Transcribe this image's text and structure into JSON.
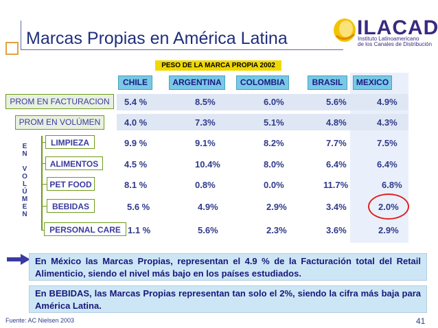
{
  "title": "Marcas Propias en América Latina",
  "logo": {
    "name": "ILACAD",
    "subtitle_line1": "Instituto Latinoamericano",
    "subtitle_line2": "de los Canales de Distribución"
  },
  "banner": "PESO DE LA MARCA PROPIA 2002",
  "countries": [
    "CHILE",
    "ARGENTINA",
    "COLOMBIA",
    "BRASIL",
    "MEXICO"
  ],
  "row_labels": {
    "facturacion": "PROM EN FACTURACION",
    "volumen": "PROM EN VOLÚMEN"
  },
  "vertical_label": [
    "E",
    "N",
    "",
    "V",
    "O",
    "L",
    "Ú",
    "M",
    "E",
    "N"
  ],
  "categories": [
    "LIMPIEZA",
    "ALIMENTOS",
    "PET FOOD",
    "BEBIDAS",
    "PERSONAL CARE"
  ],
  "table": {
    "facturacion": [
      "5.4 %",
      "8.5%",
      "6.0%",
      "5.6%",
      "4.9%"
    ],
    "volumen": [
      "4.0 %",
      "7.3%",
      "5.1%",
      "4.8%",
      "4.3%"
    ],
    "limpieza": [
      "9.9 %",
      "9.1%",
      "8.2%",
      "7.7%",
      "7.5%"
    ],
    "alimentos": [
      "4.5 %",
      "10.4%",
      "8.0%",
      "6.4%",
      "6.4%"
    ],
    "pet_food": [
      "8.1 %",
      "0.8%",
      "0.0%",
      "11.7%",
      "6.8%"
    ],
    "bebidas": [
      "5.6 %",
      "4.9%",
      "2.9%",
      "3.4%",
      "2.0%"
    ],
    "personal_care": [
      "1.1 %",
      "5.6%",
      "2.3%",
      "3.6%",
      "2.9%"
    ]
  },
  "notes": [
    "En México las Marcas Propias, representan el 4.9 % de la Facturación total del Retail Alimenticio, siendo el nivel más bajo en los países estudiados.",
    "En BEBIDAS, las Marcas Propias representan tan solo el 2%, siendo la cifra más baja para América Latina."
  ],
  "footer": "Fuente: AC Nielsen  2003",
  "page_number": "41",
  "colors": {
    "title": "#1f2f7a",
    "banner": "#f1d900",
    "country_header": "#78c8e6",
    "note_bg": "#cde6f5",
    "highlight_circle": "#e02020"
  }
}
